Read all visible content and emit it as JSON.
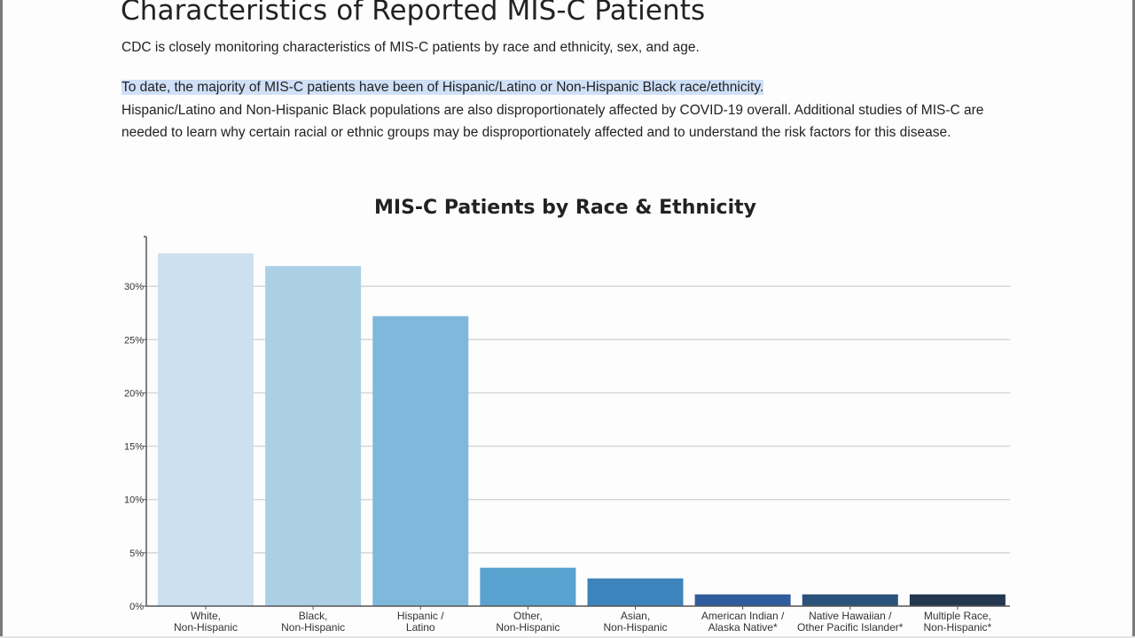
{
  "page": {
    "title": "Characteristics of Reported MIS-C Patients",
    "intro": "CDC is closely monitoring characteristics of MIS-C patients by race and ethnicity, sex, and age.",
    "highlighted_sentence": "To date, the majority of MIS-C patients have been of Hispanic/Latino or Non-Hispanic Black race/ethnicity.",
    "body_text": "Hispanic/Latino and Non-Hispanic Black populations are also disproportionately affected by COVID-19 overall. Additional studies of MIS-C are needed to learn why certain racial or ethnic groups may be disproportionately affected and to understand the risk factors for this disease."
  },
  "colors": {
    "highlight": "#cfe0f7",
    "gridline": "#d6d6d6",
    "axis": "#555555"
  },
  "chart_data": {
    "type": "bar",
    "title": "MIS-C Patients by Race & Ethnicity",
    "xlabel": "",
    "ylabel": "",
    "ylim": [
      0,
      35
    ],
    "yticks": [
      0,
      5,
      10,
      15,
      20,
      25,
      30
    ],
    "ytick_labels": [
      "0%",
      "5%",
      "10%",
      "15%",
      "20%",
      "25%",
      "30%"
    ],
    "grid": true,
    "categories": [
      [
        "White,",
        "Non-Hispanic"
      ],
      [
        "Black,",
        "Non-Hispanic"
      ],
      [
        "Hispanic /",
        "Latino"
      ],
      [
        "Other,",
        "Non-Hispanic"
      ],
      [
        "Asian,",
        "Non-Hispanic"
      ],
      [
        "American Indian /",
        "Alaska Native*"
      ],
      [
        "Native Hawaiian /",
        "Other Pacific Islander*"
      ],
      [
        "Multiple Race,",
        "Non-Hispanic*"
      ]
    ],
    "values": [
      33.1,
      31.9,
      27.2,
      3.6,
      2.6,
      1.1,
      1.1,
      1.1
    ],
    "bar_colors": [
      "#cde0ef",
      "#abd0e5",
      "#80b8dc",
      "#5aa2cf",
      "#3d84bd",
      "#2f5c9c",
      "#2a527a",
      "#23374f"
    ],
    "units": "%"
  }
}
